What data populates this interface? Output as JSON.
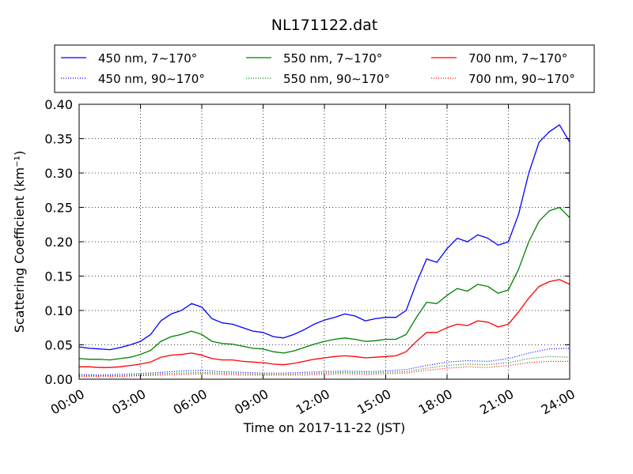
{
  "chart_data": {
    "type": "line",
    "title": "NL171122.dat",
    "xlabel": "Time on 2017-11-22 (JST)",
    "ylabel": "Scattering Coefficient (km⁻¹)",
    "x_tick_labels": [
      "00:00",
      "03:00",
      "06:00",
      "09:00",
      "12:00",
      "15:00",
      "18:00",
      "21:00",
      "24:00"
    ],
    "y_tick_labels": [
      "0.00",
      "0.05",
      "0.10",
      "0.15",
      "0.20",
      "0.25",
      "0.30",
      "0.35",
      "0.40"
    ],
    "x_range_hours": [
      0,
      24
    ],
    "ylim": [
      0,
      0.4
    ],
    "grid": true,
    "legend": {
      "placement": "top",
      "columns": 3
    },
    "x_unit": "hours (JST)",
    "series": [
      {
        "name": "450 nm, 7∼170°",
        "color": "#0000ff",
        "style": "solid",
        "x": [
          0,
          0.5,
          1,
          1.5,
          2,
          2.5,
          3,
          3.5,
          4,
          4.5,
          5,
          5.5,
          6,
          6.5,
          7,
          7.5,
          8,
          8.5,
          9,
          9.5,
          10,
          10.5,
          11,
          11.5,
          12,
          12.5,
          13,
          13.5,
          14,
          14.5,
          15,
          15.5,
          16,
          16.5,
          17,
          17.5,
          18,
          18.5,
          19,
          19.5,
          20,
          20.5,
          21,
          21.5,
          22,
          22.5,
          23,
          23.5,
          24
        ],
        "y": [
          0.047,
          0.045,
          0.044,
          0.043,
          0.046,
          0.05,
          0.055,
          0.065,
          0.085,
          0.095,
          0.1,
          0.11,
          0.105,
          0.088,
          0.082,
          0.08,
          0.075,
          0.07,
          0.068,
          0.062,
          0.06,
          0.065,
          0.072,
          0.08,
          0.086,
          0.09,
          0.095,
          0.092,
          0.085,
          0.088,
          0.09,
          0.09,
          0.1,
          0.14,
          0.175,
          0.17,
          0.19,
          0.205,
          0.2,
          0.21,
          0.205,
          0.195,
          0.2,
          0.24,
          0.3,
          0.345,
          0.36,
          0.37,
          0.345
        ]
      },
      {
        "name": "550 nm, 7∼170°",
        "color": "#008000",
        "style": "solid",
        "x": [
          0,
          0.5,
          1,
          1.5,
          2,
          2.5,
          3,
          3.5,
          4,
          4.5,
          5,
          5.5,
          6,
          6.5,
          7,
          7.5,
          8,
          8.5,
          9,
          9.5,
          10,
          10.5,
          11,
          11.5,
          12,
          12.5,
          13,
          13.5,
          14,
          14.5,
          15,
          15.5,
          16,
          16.5,
          17,
          17.5,
          18,
          18.5,
          19,
          19.5,
          20,
          20.5,
          21,
          21.5,
          22,
          22.5,
          23,
          23.5,
          24
        ],
        "y": [
          0.03,
          0.029,
          0.029,
          0.028,
          0.03,
          0.032,
          0.036,
          0.042,
          0.055,
          0.062,
          0.065,
          0.07,
          0.065,
          0.055,
          0.052,
          0.051,
          0.048,
          0.045,
          0.044,
          0.04,
          0.038,
          0.041,
          0.046,
          0.051,
          0.055,
          0.058,
          0.06,
          0.058,
          0.055,
          0.056,
          0.058,
          0.058,
          0.065,
          0.09,
          0.112,
          0.11,
          0.122,
          0.132,
          0.128,
          0.138,
          0.135,
          0.125,
          0.13,
          0.16,
          0.2,
          0.23,
          0.245,
          0.25,
          0.235
        ]
      },
      {
        "name": "700 nm, 7∼170°",
        "color": "#ff0000",
        "style": "solid",
        "x": [
          0,
          0.5,
          1,
          1.5,
          2,
          2.5,
          3,
          3.5,
          4,
          4.5,
          5,
          5.5,
          6,
          6.5,
          7,
          7.5,
          8,
          8.5,
          9,
          9.5,
          10,
          10.5,
          11,
          11.5,
          12,
          12.5,
          13,
          13.5,
          14,
          14.5,
          15,
          15.5,
          16,
          16.5,
          17,
          17.5,
          18,
          18.5,
          19,
          19.5,
          20,
          20.5,
          21,
          21.5,
          22,
          22.5,
          23,
          23.5,
          24
        ],
        "y": [
          0.018,
          0.018,
          0.017,
          0.017,
          0.018,
          0.02,
          0.022,
          0.025,
          0.032,
          0.035,
          0.036,
          0.038,
          0.035,
          0.03,
          0.028,
          0.028,
          0.026,
          0.025,
          0.024,
          0.022,
          0.021,
          0.023,
          0.026,
          0.029,
          0.031,
          0.033,
          0.034,
          0.033,
          0.031,
          0.032,
          0.033,
          0.034,
          0.04,
          0.055,
          0.068,
          0.068,
          0.075,
          0.08,
          0.078,
          0.085,
          0.083,
          0.076,
          0.08,
          0.098,
          0.118,
          0.135,
          0.142,
          0.145,
          0.138
        ]
      },
      {
        "name": "450 nm, 90∼170°",
        "color": "#0000ff",
        "style": "dotted",
        "x": [
          0,
          1,
          2,
          3,
          4,
          5,
          6,
          7,
          8,
          9,
          10,
          11,
          12,
          13,
          14,
          15,
          16,
          17,
          18,
          19,
          20,
          21,
          22,
          23,
          24
        ],
        "y": [
          0.007,
          0.006,
          0.007,
          0.008,
          0.01,
          0.012,
          0.013,
          0.011,
          0.01,
          0.009,
          0.009,
          0.01,
          0.011,
          0.012,
          0.011,
          0.012,
          0.014,
          0.02,
          0.025,
          0.027,
          0.026,
          0.03,
          0.038,
          0.044,
          0.045
        ]
      },
      {
        "name": "550 nm, 90∼170°",
        "color": "#008000",
        "style": "dotted",
        "x": [
          0,
          1,
          2,
          3,
          4,
          5,
          6,
          7,
          8,
          9,
          10,
          11,
          12,
          13,
          14,
          15,
          16,
          17,
          18,
          19,
          20,
          21,
          22,
          23,
          24
        ],
        "y": [
          0.005,
          0.005,
          0.005,
          0.006,
          0.008,
          0.009,
          0.01,
          0.009,
          0.008,
          0.007,
          0.007,
          0.008,
          0.009,
          0.01,
          0.009,
          0.01,
          0.011,
          0.016,
          0.02,
          0.022,
          0.021,
          0.024,
          0.03,
          0.033,
          0.032
        ]
      },
      {
        "name": "700 nm, 90∼170°",
        "color": "#ff0000",
        "style": "dotted",
        "x": [
          0,
          1,
          2,
          3,
          4,
          5,
          6,
          7,
          8,
          9,
          10,
          11,
          12,
          13,
          14,
          15,
          16,
          17,
          18,
          19,
          20,
          21,
          22,
          23,
          24
        ],
        "y": [
          0.004,
          0.004,
          0.004,
          0.005,
          0.006,
          0.007,
          0.008,
          0.007,
          0.006,
          0.006,
          0.006,
          0.006,
          0.007,
          0.008,
          0.007,
          0.008,
          0.009,
          0.013,
          0.016,
          0.018,
          0.017,
          0.02,
          0.024,
          0.026,
          0.026
        ]
      }
    ]
  }
}
